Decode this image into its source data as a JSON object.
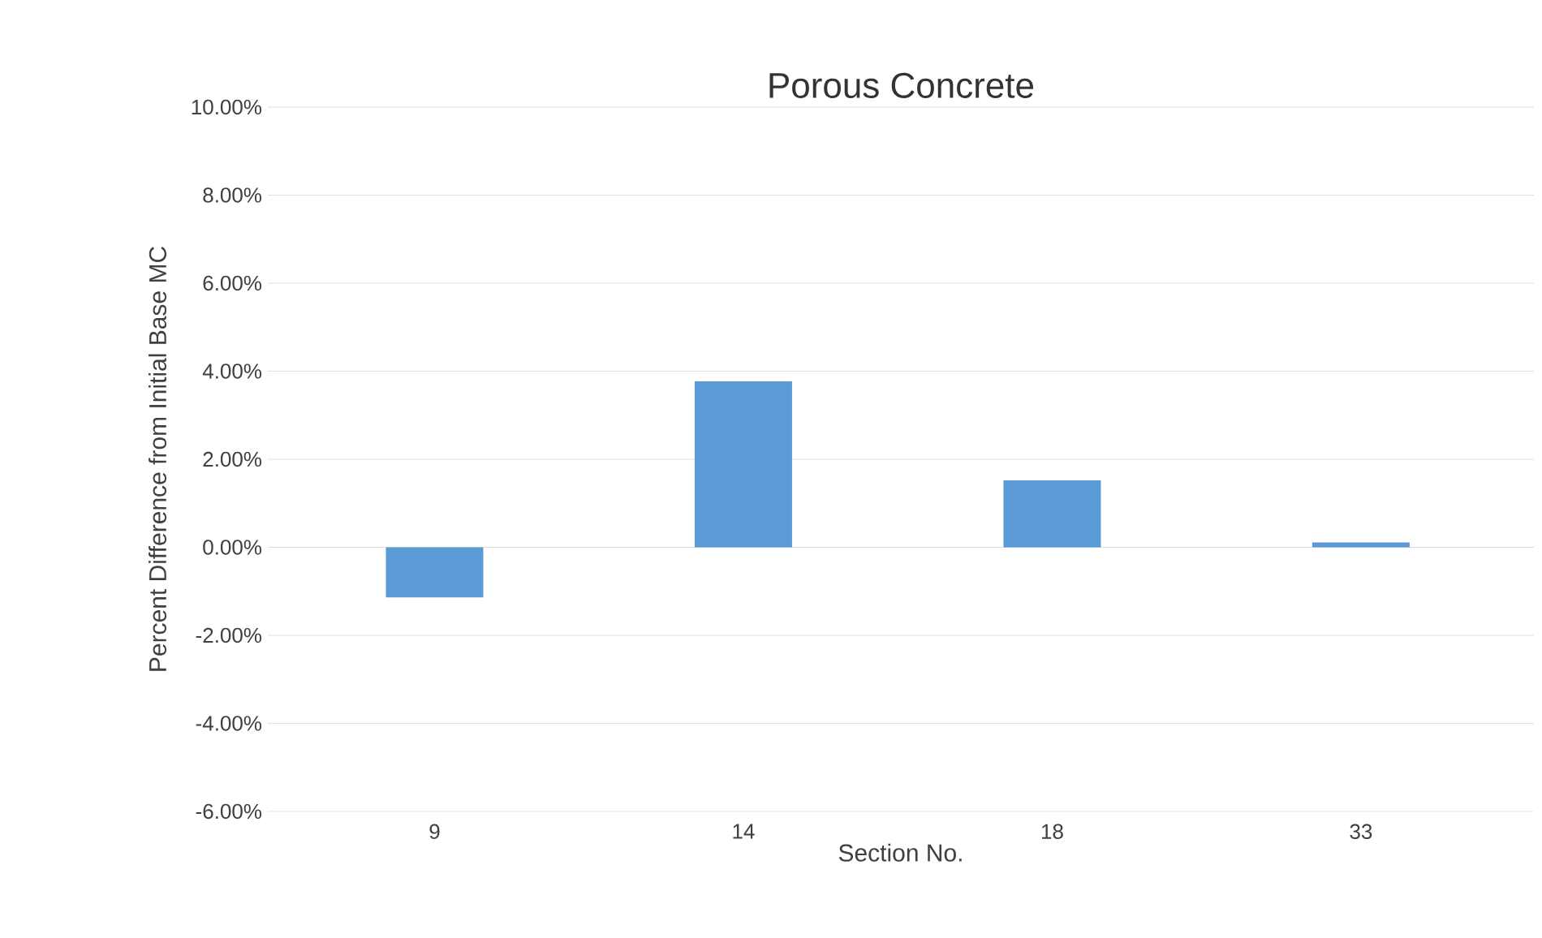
{
  "chart_data": {
    "type": "bar",
    "title": "Porous Concrete",
    "xlabel": "Section No.",
    "ylabel": "Percent Difference from Initial Base MC",
    "categories": [
      "9",
      "14",
      "18",
      "33"
    ],
    "values": [
      -1.14,
      3.77,
      1.52,
      0.11
    ],
    "color": "#5b9bd5",
    "ylim": [
      -6,
      10
    ],
    "yticks": [
      {
        "value": -6,
        "label": "-6.00%"
      },
      {
        "value": -4,
        "label": "-4.00%"
      },
      {
        "value": -2,
        "label": "-2.00%"
      },
      {
        "value": 0,
        "label": "0.00%"
      },
      {
        "value": 2,
        "label": "2.00%"
      },
      {
        "value": 4,
        "label": "4.00%"
      },
      {
        "value": 6,
        "label": "6.00%"
      },
      {
        "value": 8,
        "label": "8.00%"
      },
      {
        "value": 10,
        "label": "10.00%"
      }
    ],
    "grid": "y"
  }
}
